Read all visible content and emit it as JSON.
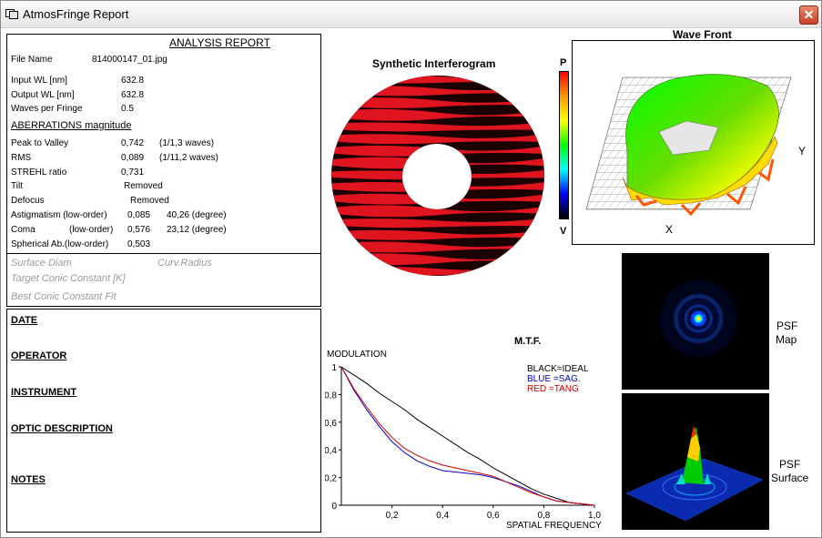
{
  "window": {
    "title": "AtmosFringe  Report",
    "close_label": "✕"
  },
  "report": {
    "header": "ANALYSIS  REPORT",
    "file": {
      "label": "File Name",
      "value": "814000147_01.jpg"
    },
    "input_wl": {
      "label": "Input  WL [nm]",
      "value": "632.8"
    },
    "output_wl": {
      "label": "Output WL [nm]",
      "value": "632.8"
    },
    "waves": {
      "label": "Waves per Fringe",
      "value": "0.5"
    },
    "aberrations_header": "ABERRATIONS magnitude",
    "p2v": {
      "label": "Peak to Valley",
      "value": "0,742",
      "extra": "(1/1,3 waves)"
    },
    "rms": {
      "label": "RMS",
      "value": "0,089",
      "extra": "(1/11,2 waves)"
    },
    "strehl": {
      "label": "STREHL ratio",
      "value": "0,731"
    },
    "tilt": {
      "label": "Tilt",
      "value": "Removed"
    },
    "defocus": {
      "label": "Defocus",
      "value": "Removed"
    },
    "astig": {
      "label": "Astigmatism  (low-order)",
      "value": "0,085",
      "extra": "40,26  (degree)"
    },
    "coma": {
      "label": "Coma",
      "order": "(low-order)",
      "value": "0,576",
      "extra": "23,12  (degree)"
    },
    "spherical": {
      "label": "Spherical Ab.(low-order)",
      "value": "0,503"
    },
    "surface_diam": "Surface Diam",
    "curv_radius": "Curv.Radius",
    "target_conic": "Target Conic Constant [K]",
    "best_conic": "Best Conic Constant Fit"
  },
  "notes": {
    "date": "DATE",
    "operator": "OPERATOR",
    "instrument": "INSTRUMENT",
    "optic": "OPTIC DESCRIPTION",
    "notes": "NOTES"
  },
  "interferogram": {
    "title": "Synthetic Interferogram",
    "scale_top": "P",
    "scale_bottom": "V"
  },
  "wavefront": {
    "title": "Wave Front",
    "x_label": "X",
    "y_label": "Y"
  },
  "psf": {
    "map_label_1": "PSF",
    "map_label_2": "Map",
    "surface_label_1": "PSF",
    "surface_label_2": "Surface"
  },
  "colors": {
    "fringe_red": "#e0141e",
    "fringe_dark": "#1a0202",
    "mtf_ideal": "#000000",
    "mtf_sag": "#0000cc",
    "mtf_tang": "#cc0000"
  },
  "chart_data": {
    "type": "line",
    "title": "M.T.F.",
    "ylabel": "MODULATION",
    "xlabel": "SPATIAL FREQUENCY",
    "xlim": [
      0,
      1
    ],
    "ylim": [
      0,
      1
    ],
    "x_ticks": [
      "0,2",
      "0,4",
      "0,6",
      "0,8",
      "1,0"
    ],
    "y_ticks": [
      "0",
      "0,2",
      "0,4",
      "0,6",
      "0,8",
      "1"
    ],
    "legend": [
      "BLACK=IDEAL",
      "BLUE  =SAG.",
      "RED    =TANG"
    ],
    "x": [
      0,
      0.05,
      0.1,
      0.15,
      0.2,
      0.25,
      0.3,
      0.35,
      0.4,
      0.45,
      0.5,
      0.55,
      0.6,
      0.65,
      0.7,
      0.75,
      0.8,
      0.85,
      0.9,
      0.95,
      1.0
    ],
    "series": [
      {
        "name": "IDEAL",
        "color": "#000000",
        "values": [
          1.0,
          0.94,
          0.88,
          0.81,
          0.75,
          0.69,
          0.62,
          0.56,
          0.5,
          0.44,
          0.38,
          0.33,
          0.27,
          0.22,
          0.17,
          0.12,
          0.08,
          0.05,
          0.02,
          0.01,
          0.0
        ]
      },
      {
        "name": "SAG.",
        "color": "#0000cc",
        "values": [
          1.0,
          0.83,
          0.69,
          0.57,
          0.46,
          0.38,
          0.32,
          0.28,
          0.25,
          0.24,
          0.23,
          0.22,
          0.2,
          0.17,
          0.14,
          0.1,
          0.06,
          0.03,
          0.02,
          0.01,
          0.0
        ]
      },
      {
        "name": "TANG",
        "color": "#cc0000",
        "values": [
          1.0,
          0.84,
          0.71,
          0.59,
          0.49,
          0.41,
          0.36,
          0.32,
          0.29,
          0.27,
          0.25,
          0.23,
          0.21,
          0.17,
          0.13,
          0.09,
          0.06,
          0.03,
          0.02,
          0.01,
          0.0
        ]
      }
    ]
  }
}
